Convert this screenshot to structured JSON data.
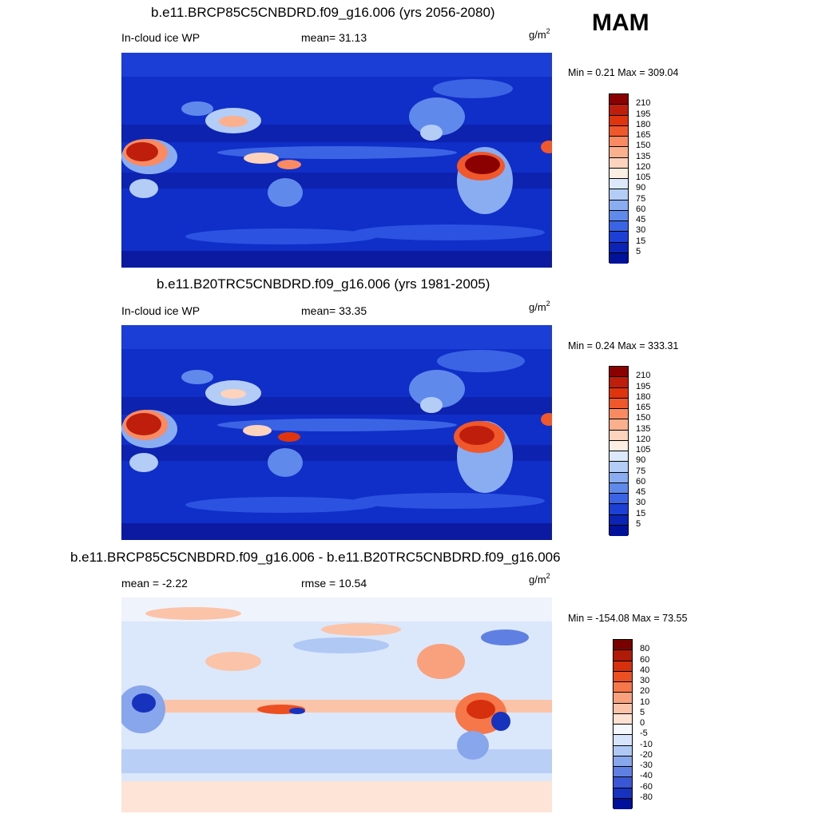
{
  "season": "MAM",
  "units_main": "g/m",
  "units_exp": "2",
  "panels": [
    {
      "title": "b.e11.BRCP85C5CNBDRD.f09_g16.006 (yrs 2056-2080)",
      "left_text": "In-cloud ice WP",
      "center_text": "mean=  31.13",
      "minmax": "Min =   0.21 Max = 309.04",
      "colorbar": {
        "labels": [
          "210",
          "195",
          "180",
          "165",
          "150",
          "135",
          "120",
          "105",
          "90",
          "75",
          "60",
          "45",
          "30",
          "15",
          "5"
        ],
        "colors": [
          "#8b0000",
          "#be1e0b",
          "#e0340f",
          "#f0572a",
          "#f98a62",
          "#fbb08d",
          "#fdd3bd",
          "#fdeee3",
          "#dbe9fb",
          "#b4cdf7",
          "#8aadf2",
          "#5f8aec",
          "#3a64e4",
          "#1c3fd6",
          "#0b24b5",
          "#00129a"
        ]
      }
    },
    {
      "title": "b.e11.B20TRC5CNBDRD.f09_g16.006 (yrs 1981-2005)",
      "left_text": "In-cloud ice WP",
      "center_text": "mean=  33.35",
      "minmax": "Min =   0.24 Max = 333.31",
      "colorbar": {
        "labels": [
          "210",
          "195",
          "180",
          "165",
          "150",
          "135",
          "120",
          "105",
          "90",
          "75",
          "60",
          "45",
          "30",
          "15",
          "5"
        ],
        "colors": [
          "#8b0000",
          "#be1e0b",
          "#e0340f",
          "#f0572a",
          "#f98a62",
          "#fbb08d",
          "#fdd3bd",
          "#fdeee3",
          "#dbe9fb",
          "#b4cdf7",
          "#8aadf2",
          "#5f8aec",
          "#3a64e4",
          "#1c3fd6",
          "#0b24b5",
          "#00129a"
        ]
      }
    },
    {
      "title": "b.e11.BRCP85C5CNBDRD.f09_g16.006 - b.e11.B20TRC5CNBDRD.f09_g16.006",
      "left_text": "mean =  -2.22",
      "center_text": "rmse =  10.54",
      "minmax": "Min = -154.08 Max =  73.55",
      "colorbar": {
        "labels": [
          "80",
          "60",
          "40",
          "30",
          "20",
          "10",
          "5",
          "0",
          "-5",
          "-10",
          "-20",
          "-30",
          "-40",
          "-60",
          "-80"
        ],
        "colors": [
          "#7a0000",
          "#b01a08",
          "#d6300e",
          "#ec4f22",
          "#f6774a",
          "#f9a07c",
          "#fbc4a8",
          "#fde2d3",
          "#f5f8ff",
          "#d6e5fb",
          "#b0c8f4",
          "#88a6ec",
          "#5f80e2",
          "#3a58d6",
          "#1732bd",
          "#00109a"
        ]
      }
    }
  ]
}
